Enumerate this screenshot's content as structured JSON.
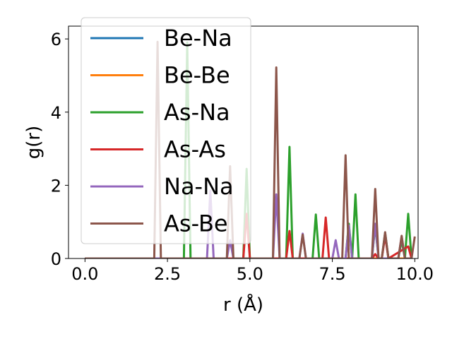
{
  "chart_data": {
    "type": "line",
    "xlabel": "r (Å)",
    "ylabel": "g(r)",
    "xlim": [
      -0.5,
      10.1
    ],
    "ylim": [
      0,
      6.35
    ],
    "xticks": [
      "0.0",
      "2.5",
      "5.0",
      "7.5",
      "10.0"
    ],
    "xtick_values": [
      0,
      2.5,
      5,
      7.5,
      10
    ],
    "yticks": [
      "0",
      "2",
      "4",
      "6"
    ],
    "ytick_values": [
      0,
      2,
      4,
      6
    ],
    "legend_position": "upper-left",
    "series": [
      {
        "name": "Be-Na",
        "color": "#1f77b4",
        "x": [
          0,
          9.8
        ],
        "y": [
          0,
          0
        ]
      },
      {
        "name": "Be-Be",
        "color": "#ff7f0e",
        "x": [
          0,
          9.8
        ],
        "y": [
          0,
          0
        ]
      },
      {
        "name": "As-Na",
        "color": "#2ca02c",
        "x": [
          0,
          3.0,
          3.1,
          3.2,
          3.3,
          4.8,
          4.9,
          5.0,
          6.1,
          6.2,
          6.3,
          6.9,
          7.0,
          7.1,
          7.9,
          8.0,
          8.1,
          8.2,
          8.3,
          8.7,
          8.8,
          8.9,
          9.0,
          9.1,
          9.2,
          9.5,
          9.6,
          9.7,
          9.8,
          9.9
        ],
        "y": [
          0,
          0,
          5.9,
          0,
          0,
          0,
          2.45,
          0,
          0,
          3.05,
          0,
          0,
          1.2,
          0,
          0,
          0.95,
          0,
          1.75,
          0,
          0,
          0.9,
          0,
          0,
          0.7,
          0,
          0,
          0.5,
          0,
          1.22,
          0
        ]
      },
      {
        "name": "As-As",
        "color": "#d62728",
        "x": [
          0,
          4.8,
          4.9,
          5.0,
          6.1,
          6.2,
          6.3,
          7.2,
          7.3,
          7.4,
          8.7,
          8.8,
          8.9,
          9.0,
          9.1,
          9.2,
          9.8,
          9.9
        ],
        "y": [
          0,
          0,
          1.22,
          0,
          0,
          0.75,
          0,
          0,
          1.12,
          0,
          0,
          0.12,
          0,
          0,
          0.62,
          0,
          0.33,
          0
        ]
      },
      {
        "name": "Na-Na",
        "color": "#9467bd",
        "x": [
          0,
          3.7,
          3.8,
          3.9,
          4.3,
          4.4,
          4.5,
          5.7,
          5.8,
          5.9,
          6.5,
          6.6,
          6.7,
          7.5,
          7.6,
          7.7,
          7.9,
          8.0,
          8.1,
          8.7,
          8.8,
          8.9,
          9.5,
          9.6,
          9.7
        ],
        "y": [
          0,
          0,
          1.85,
          0,
          0,
          0.5,
          0,
          0,
          1.75,
          0,
          0,
          0.68,
          0,
          0,
          0.5,
          0,
          0,
          0.9,
          0,
          0,
          0.95,
          0,
          0,
          0.6,
          0
        ]
      },
      {
        "name": "As-Be",
        "color": "#8c564b",
        "x": [
          0,
          2.1,
          2.2,
          2.3,
          4.3,
          4.4,
          4.5,
          5.7,
          5.8,
          5.9,
          6.5,
          6.6,
          6.7,
          7.8,
          7.9,
          8.0,
          8.7,
          8.8,
          8.9,
          9.0,
          9.1,
          9.2,
          9.5,
          9.6,
          9.7,
          9.9,
          10.0
        ],
        "y": [
          0,
          0,
          5.92,
          0,
          0,
          2.52,
          0,
          0,
          5.22,
          0,
          0,
          0.65,
          0,
          0,
          2.82,
          0,
          0,
          1.9,
          0,
          0,
          0.72,
          0,
          0,
          0.62,
          0,
          0,
          0.6
        ]
      }
    ]
  }
}
